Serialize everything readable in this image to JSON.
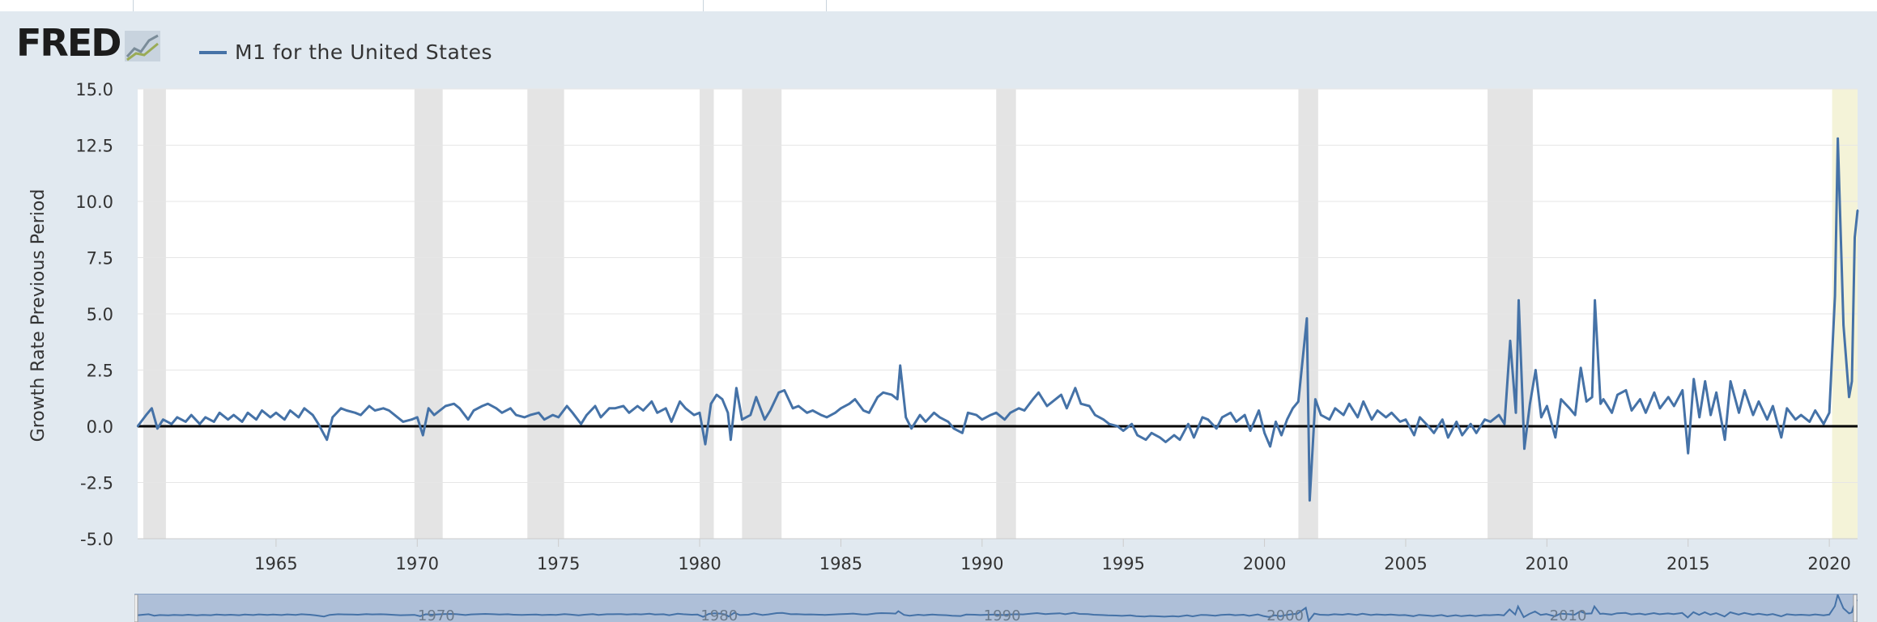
{
  "header": {
    "logo_text": "FRED",
    "logo_icon": "chart-line-icon",
    "legend_label": "M1 for the United States",
    "series_color": "#4572a7"
  },
  "navigator": {
    "year_labels": [
      "1970",
      "1980",
      "1990",
      "2000",
      "2010"
    ]
  },
  "chart_data": {
    "type": "line",
    "title": "",
    "xlabel": "",
    "ylabel": "Growth Rate Previous Period",
    "xlim": [
      1960.1,
      2021.0
    ],
    "ylim": [
      -5.0,
      15.0
    ],
    "y_ticks": [
      "15.0",
      "12.5",
      "10.0",
      "7.5",
      "5.0",
      "2.5",
      "0.0",
      "-2.5",
      "-5.0"
    ],
    "x_ticks": [
      "1965",
      "1970",
      "1975",
      "1980",
      "1985",
      "1990",
      "1995",
      "2000",
      "2005",
      "2010",
      "2015",
      "2020"
    ],
    "grid": true,
    "zero_line": true,
    "recessions": [
      [
        1960.3,
        1961.1
      ],
      [
        1969.9,
        1970.9
      ],
      [
        1973.9,
        1975.2
      ],
      [
        1980.0,
        1980.5
      ],
      [
        1981.5,
        1982.9
      ],
      [
        1990.5,
        1991.2
      ],
      [
        2001.2,
        2001.9
      ],
      [
        2007.9,
        2009.5
      ],
      [
        2020.1,
        2021.0
      ]
    ],
    "recession_colors": {
      "default": "#e4e4e4",
      "current": "#f4f3d8"
    },
    "series": [
      {
        "name": "M1 for the United States",
        "color": "#4572a7",
        "points": [
          [
            1960.1,
            0.0
          ],
          [
            1960.4,
            0.5
          ],
          [
            1960.6,
            0.8
          ],
          [
            1960.8,
            -0.1
          ],
          [
            1961.0,
            0.3
          ],
          [
            1961.3,
            0.1
          ],
          [
            1961.5,
            0.4
          ],
          [
            1961.8,
            0.2
          ],
          [
            1962.0,
            0.5
          ],
          [
            1962.3,
            0.1
          ],
          [
            1962.5,
            0.4
          ],
          [
            1962.8,
            0.2
          ],
          [
            1963.0,
            0.6
          ],
          [
            1963.3,
            0.3
          ],
          [
            1963.5,
            0.5
          ],
          [
            1963.8,
            0.2
          ],
          [
            1964.0,
            0.6
          ],
          [
            1964.3,
            0.3
          ],
          [
            1964.5,
            0.7
          ],
          [
            1964.8,
            0.4
          ],
          [
            1965.0,
            0.6
          ],
          [
            1965.3,
            0.3
          ],
          [
            1965.5,
            0.7
          ],
          [
            1965.8,
            0.4
          ],
          [
            1966.0,
            0.8
          ],
          [
            1966.3,
            0.5
          ],
          [
            1966.5,
            0.1
          ],
          [
            1966.8,
            -0.6
          ],
          [
            1967.0,
            0.4
          ],
          [
            1967.3,
            0.8
          ],
          [
            1967.5,
            0.7
          ],
          [
            1967.8,
            0.6
          ],
          [
            1968.0,
            0.5
          ],
          [
            1968.3,
            0.9
          ],
          [
            1968.5,
            0.7
          ],
          [
            1968.8,
            0.8
          ],
          [
            1969.0,
            0.7
          ],
          [
            1969.3,
            0.4
          ],
          [
            1969.5,
            0.2
          ],
          [
            1969.8,
            0.3
          ],
          [
            1970.0,
            0.4
          ],
          [
            1970.2,
            -0.4
          ],
          [
            1970.4,
            0.8
          ],
          [
            1970.6,
            0.5
          ],
          [
            1970.8,
            0.7
          ],
          [
            1971.0,
            0.9
          ],
          [
            1971.3,
            1.0
          ],
          [
            1971.5,
            0.8
          ],
          [
            1971.8,
            0.3
          ],
          [
            1972.0,
            0.7
          ],
          [
            1972.3,
            0.9
          ],
          [
            1972.5,
            1.0
          ],
          [
            1972.8,
            0.8
          ],
          [
            1973.0,
            0.6
          ],
          [
            1973.3,
            0.8
          ],
          [
            1973.5,
            0.5
          ],
          [
            1973.8,
            0.4
          ],
          [
            1974.0,
            0.5
          ],
          [
            1974.3,
            0.6
          ],
          [
            1974.5,
            0.3
          ],
          [
            1974.8,
            0.5
          ],
          [
            1975.0,
            0.4
          ],
          [
            1975.3,
            0.9
          ],
          [
            1975.5,
            0.6
          ],
          [
            1975.8,
            0.1
          ],
          [
            1976.0,
            0.5
          ],
          [
            1976.3,
            0.9
          ],
          [
            1976.5,
            0.4
          ],
          [
            1976.8,
            0.8
          ],
          [
            1977.0,
            0.8
          ],
          [
            1977.3,
            0.9
          ],
          [
            1977.5,
            0.6
          ],
          [
            1977.8,
            0.9
          ],
          [
            1978.0,
            0.7
          ],
          [
            1978.3,
            1.1
          ],
          [
            1978.5,
            0.6
          ],
          [
            1978.8,
            0.8
          ],
          [
            1979.0,
            0.2
          ],
          [
            1979.3,
            1.1
          ],
          [
            1979.5,
            0.8
          ],
          [
            1979.8,
            0.5
          ],
          [
            1980.0,
            0.6
          ],
          [
            1980.2,
            -0.8
          ],
          [
            1980.4,
            1.0
          ],
          [
            1980.6,
            1.4
          ],
          [
            1980.8,
            1.2
          ],
          [
            1981.0,
            0.6
          ],
          [
            1981.1,
            -0.6
          ],
          [
            1981.3,
            1.7
          ],
          [
            1981.5,
            0.3
          ],
          [
            1981.8,
            0.5
          ],
          [
            1982.0,
            1.3
          ],
          [
            1982.3,
            0.3
          ],
          [
            1982.5,
            0.7
          ],
          [
            1982.8,
            1.5
          ],
          [
            1983.0,
            1.6
          ],
          [
            1983.3,
            0.8
          ],
          [
            1983.5,
            0.9
          ],
          [
            1983.8,
            0.6
          ],
          [
            1984.0,
            0.7
          ],
          [
            1984.3,
            0.5
          ],
          [
            1984.5,
            0.4
          ],
          [
            1984.8,
            0.6
          ],
          [
            1985.0,
            0.8
          ],
          [
            1985.3,
            1.0
          ],
          [
            1985.5,
            1.2
          ],
          [
            1985.8,
            0.7
          ],
          [
            1986.0,
            0.6
          ],
          [
            1986.3,
            1.3
          ],
          [
            1986.5,
            1.5
          ],
          [
            1986.8,
            1.4
          ],
          [
            1987.0,
            1.2
          ],
          [
            1987.1,
            2.7
          ],
          [
            1987.3,
            0.4
          ],
          [
            1987.5,
            -0.1
          ],
          [
            1987.8,
            0.5
          ],
          [
            1988.0,
            0.2
          ],
          [
            1988.3,
            0.6
          ],
          [
            1988.5,
            0.4
          ],
          [
            1988.8,
            0.2
          ],
          [
            1989.0,
            -0.1
          ],
          [
            1989.3,
            -0.3
          ],
          [
            1989.5,
            0.6
          ],
          [
            1989.8,
            0.5
          ],
          [
            1990.0,
            0.3
          ],
          [
            1990.3,
            0.5
          ],
          [
            1990.5,
            0.6
          ],
          [
            1990.8,
            0.3
          ],
          [
            1991.0,
            0.6
          ],
          [
            1991.3,
            0.8
          ],
          [
            1991.5,
            0.7
          ],
          [
            1991.8,
            1.2
          ],
          [
            1992.0,
            1.5
          ],
          [
            1992.3,
            0.9
          ],
          [
            1992.5,
            1.1
          ],
          [
            1992.8,
            1.4
          ],
          [
            1993.0,
            0.8
          ],
          [
            1993.3,
            1.7
          ],
          [
            1993.5,
            1.0
          ],
          [
            1993.8,
            0.9
          ],
          [
            1994.0,
            0.5
          ],
          [
            1994.3,
            0.3
          ],
          [
            1994.5,
            0.1
          ],
          [
            1994.8,
            0.0
          ],
          [
            1995.0,
            -0.2
          ],
          [
            1995.3,
            0.1
          ],
          [
            1995.5,
            -0.4
          ],
          [
            1995.8,
            -0.6
          ],
          [
            1996.0,
            -0.3
          ],
          [
            1996.3,
            -0.5
          ],
          [
            1996.5,
            -0.7
          ],
          [
            1996.8,
            -0.4
          ],
          [
            1997.0,
            -0.6
          ],
          [
            1997.3,
            0.1
          ],
          [
            1997.5,
            -0.5
          ],
          [
            1997.8,
            0.4
          ],
          [
            1998.0,
            0.3
          ],
          [
            1998.3,
            -0.1
          ],
          [
            1998.5,
            0.4
          ],
          [
            1998.8,
            0.6
          ],
          [
            1999.0,
            0.2
          ],
          [
            1999.3,
            0.5
          ],
          [
            1999.5,
            -0.2
          ],
          [
            1999.8,
            0.7
          ],
          [
            2000.0,
            -0.3
          ],
          [
            2000.2,
            -0.9
          ],
          [
            2000.4,
            0.2
          ],
          [
            2000.6,
            -0.4
          ],
          [
            2000.8,
            0.3
          ],
          [
            2001.0,
            0.8
          ],
          [
            2001.2,
            1.1
          ],
          [
            2001.5,
            4.8
          ],
          [
            2001.6,
            -3.3
          ],
          [
            2001.8,
            1.2
          ],
          [
            2002.0,
            0.5
          ],
          [
            2002.3,
            0.3
          ],
          [
            2002.5,
            0.8
          ],
          [
            2002.8,
            0.5
          ],
          [
            2003.0,
            1.0
          ],
          [
            2003.3,
            0.4
          ],
          [
            2003.5,
            1.1
          ],
          [
            2003.8,
            0.3
          ],
          [
            2004.0,
            0.7
          ],
          [
            2004.3,
            0.4
          ],
          [
            2004.5,
            0.6
          ],
          [
            2004.8,
            0.2
          ],
          [
            2005.0,
            0.3
          ],
          [
            2005.3,
            -0.4
          ],
          [
            2005.5,
            0.4
          ],
          [
            2005.8,
            0.0
          ],
          [
            2006.0,
            -0.3
          ],
          [
            2006.3,
            0.3
          ],
          [
            2006.5,
            -0.5
          ],
          [
            2006.8,
            0.2
          ],
          [
            2007.0,
            -0.4
          ],
          [
            2007.3,
            0.1
          ],
          [
            2007.5,
            -0.3
          ],
          [
            2007.8,
            0.3
          ],
          [
            2008.0,
            0.2
          ],
          [
            2008.3,
            0.5
          ],
          [
            2008.5,
            0.1
          ],
          [
            2008.7,
            3.8
          ],
          [
            2008.9,
            0.6
          ],
          [
            2009.0,
            5.6
          ],
          [
            2009.2,
            -1.0
          ],
          [
            2009.4,
            1.0
          ],
          [
            2009.6,
            2.5
          ],
          [
            2009.8,
            0.4
          ],
          [
            2010.0,
            0.9
          ],
          [
            2010.3,
            -0.5
          ],
          [
            2010.5,
            1.2
          ],
          [
            2010.8,
            0.8
          ],
          [
            2011.0,
            0.5
          ],
          [
            2011.2,
            2.6
          ],
          [
            2011.4,
            1.1
          ],
          [
            2011.6,
            1.3
          ],
          [
            2011.7,
            5.6
          ],
          [
            2011.9,
            1.0
          ],
          [
            2012.0,
            1.2
          ],
          [
            2012.3,
            0.6
          ],
          [
            2012.5,
            1.4
          ],
          [
            2012.8,
            1.6
          ],
          [
            2013.0,
            0.7
          ],
          [
            2013.3,
            1.2
          ],
          [
            2013.5,
            0.6
          ],
          [
            2013.8,
            1.5
          ],
          [
            2014.0,
            0.8
          ],
          [
            2014.3,
            1.3
          ],
          [
            2014.5,
            0.9
          ],
          [
            2014.8,
            1.6
          ],
          [
            2015.0,
            -1.2
          ],
          [
            2015.2,
            2.1
          ],
          [
            2015.4,
            0.4
          ],
          [
            2015.6,
            2.0
          ],
          [
            2015.8,
            0.5
          ],
          [
            2016.0,
            1.5
          ],
          [
            2016.3,
            -0.6
          ],
          [
            2016.5,
            2.0
          ],
          [
            2016.8,
            0.6
          ],
          [
            2017.0,
            1.6
          ],
          [
            2017.3,
            0.5
          ],
          [
            2017.5,
            1.1
          ],
          [
            2017.8,
            0.3
          ],
          [
            2018.0,
            0.9
          ],
          [
            2018.3,
            -0.5
          ],
          [
            2018.5,
            0.8
          ],
          [
            2018.8,
            0.3
          ],
          [
            2019.0,
            0.5
          ],
          [
            2019.3,
            0.2
          ],
          [
            2019.5,
            0.7
          ],
          [
            2019.8,
            0.1
          ],
          [
            2020.0,
            0.6
          ],
          [
            2020.2,
            5.8
          ],
          [
            2020.3,
            12.8
          ],
          [
            2020.5,
            4.5
          ],
          [
            2020.7,
            1.3
          ],
          [
            2020.8,
            2.0
          ],
          [
            2020.9,
            8.4
          ],
          [
            2021.0,
            9.6
          ]
        ]
      }
    ]
  }
}
